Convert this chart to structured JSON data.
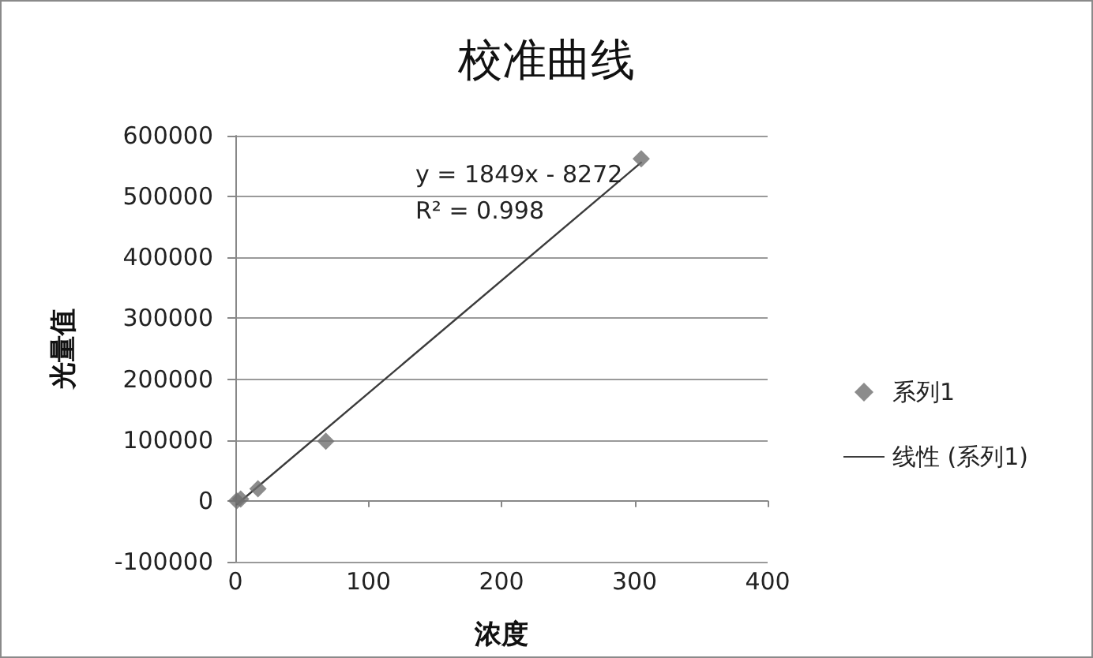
{
  "chart_data": {
    "type": "scatter",
    "title": "校准曲线",
    "xlabel": "浓度",
    "ylabel": "光量值",
    "annotations": [
      "y = 1849x - 8272",
      "R² = 0.998"
    ],
    "series": [
      {
        "name": "系列1",
        "color": "#6f6f6f",
        "marker": "diamond",
        "x": [
          1,
          4,
          17,
          68,
          305
        ],
        "values": [
          0,
          3000,
          20000,
          98000,
          562000
        ]
      },
      {
        "name": "线性 (系列1)",
        "type": "line",
        "color": "#3c3c3c",
        "marker": "none",
        "x": [
          1,
          305
        ],
        "values": [
          -6000,
          556000
        ]
      }
    ],
    "xlim": [
      0,
      400
    ],
    "xticks": [
      0,
      100,
      200,
      300,
      400
    ],
    "ylim": [
      -100000,
      600000
    ],
    "yticks": [
      -100000,
      0,
      100000,
      200000,
      300000,
      400000,
      500000,
      600000
    ],
    "grid": "y",
    "legend": "right"
  }
}
